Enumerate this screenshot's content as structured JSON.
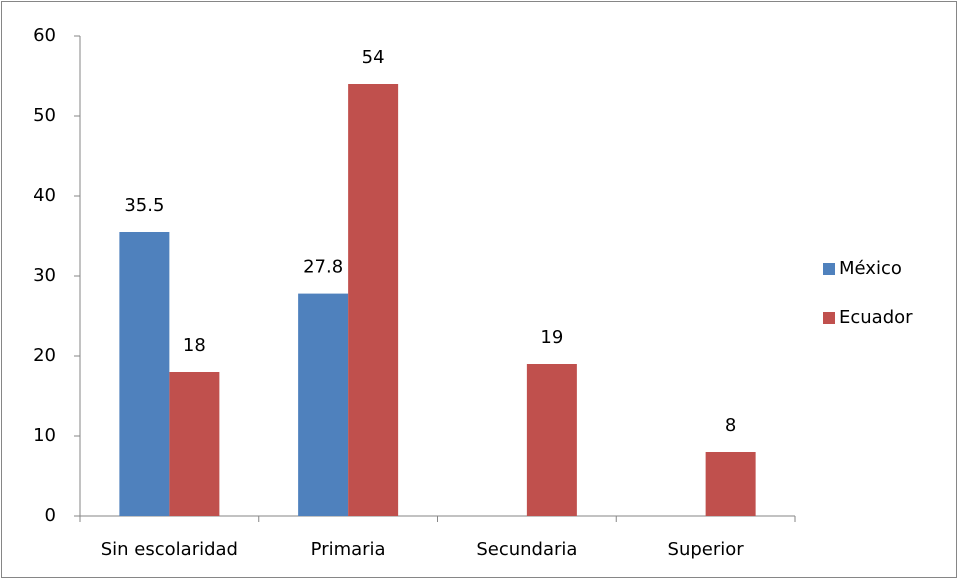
{
  "chart_data": {
    "type": "bar",
    "categories": [
      "Sin escolaridad",
      "Primaria",
      "Secundaria",
      "Superior"
    ],
    "series": [
      {
        "name": "México",
        "color": "#4f81bd",
        "values": [
          35.5,
          27.8,
          null,
          null
        ]
      },
      {
        "name": "Ecuador",
        "color": "#c0504d",
        "values": [
          18,
          54,
          19,
          8
        ]
      }
    ],
    "ylim": [
      0,
      60
    ],
    "yticks": [
      0,
      10,
      20,
      30,
      40,
      50,
      60
    ],
    "legend": "right",
    "data_labels": true
  }
}
